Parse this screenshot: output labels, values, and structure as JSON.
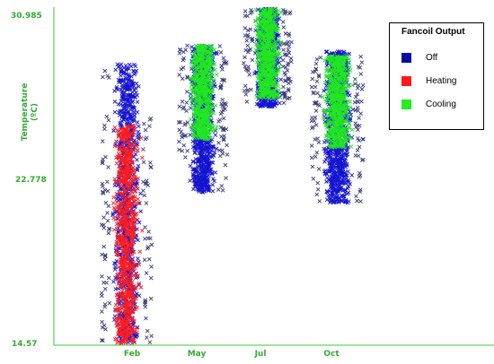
{
  "chart_data": {
    "type": "scatter",
    "title": "",
    "ylabel": "Temperature (ºC)",
    "ylabel_lines": [
      "Temperature",
      "(ºC)"
    ],
    "ylim": [
      14.57,
      30.985
    ],
    "yticks": [
      "14.57",
      "22.778",
      "30.985"
    ],
    "categories": [
      "Feb",
      "May",
      "Jul",
      "Oct"
    ],
    "legend": {
      "title": "Fancoil Output",
      "placement": "top-right",
      "entries": [
        {
          "name": "Off",
          "color": "#0a0aa5"
        },
        {
          "name": "Heating",
          "color": "#ff1a1a"
        },
        {
          "name": "Cooling",
          "color": "#22ee22"
        }
      ]
    },
    "series": [
      {
        "name": "Off",
        "color": "#1414d2",
        "ranges": [
          {
            "category": "Feb",
            "min": 14.6,
            "max": 28.3
          },
          {
            "category": "May",
            "min": 22.0,
            "max": 29.2
          },
          {
            "category": "Jul",
            "min": 26.2,
            "max": 30.985
          },
          {
            "category": "Oct",
            "min": 21.5,
            "max": 28.9
          }
        ]
      },
      {
        "name": "Heating",
        "color": "#ff1e1e",
        "ranges": [
          {
            "category": "Feb",
            "min": 14.6,
            "max": 25.3
          }
        ]
      },
      {
        "name": "Cooling",
        "color": "#22e622",
        "ranges": [
          {
            "category": "May",
            "min": 24.6,
            "max": 29.2
          },
          {
            "category": "Jul",
            "min": 26.6,
            "max": 30.985
          },
          {
            "category": "Oct",
            "min": 24.2,
            "max": 28.7
          }
        ]
      }
    ],
    "colors": {
      "axis": "#33cc33",
      "tick_label": "#33aa33",
      "outlier_marker": "#3a3a7a"
    }
  }
}
